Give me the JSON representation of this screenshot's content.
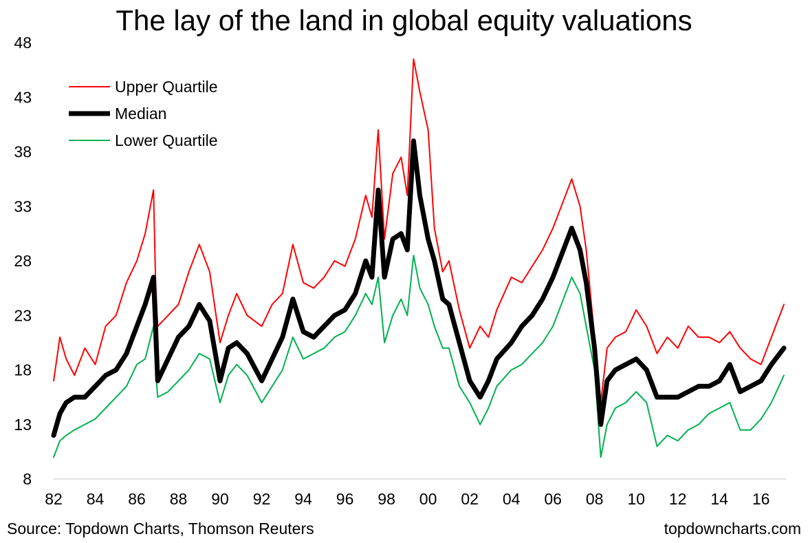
{
  "chart_data": {
    "type": "line",
    "title": "The lay of the land in global equity valuations",
    "xlabel": "",
    "ylabel": "",
    "ylim": [
      8,
      48
    ],
    "yticks": [
      8,
      13,
      18,
      23,
      28,
      33,
      38,
      43,
      48
    ],
    "xlim": [
      1982.0,
      2017.2
    ],
    "xticks": [
      {
        "value": 1982,
        "label": "82"
      },
      {
        "value": 1984,
        "label": "84"
      },
      {
        "value": 1986,
        "label": "86"
      },
      {
        "value": 1988,
        "label": "88"
      },
      {
        "value": 1990,
        "label": "90"
      },
      {
        "value": 1992,
        "label": "92"
      },
      {
        "value": 1994,
        "label": "94"
      },
      {
        "value": 1996,
        "label": "96"
      },
      {
        "value": 1998,
        "label": "98"
      },
      {
        "value": 2000,
        "label": "00"
      },
      {
        "value": 2002,
        "label": "02"
      },
      {
        "value": 2004,
        "label": "04"
      },
      {
        "value": 2006,
        "label": "06"
      },
      {
        "value": 2008,
        "label": "08"
      },
      {
        "value": 2010,
        "label": "10"
      },
      {
        "value": 2012,
        "label": "12"
      },
      {
        "value": 2014,
        "label": "14"
      },
      {
        "value": 2016,
        "label": "16"
      }
    ],
    "grid": false,
    "legend_position": "top-left",
    "x": [
      1982.0,
      1982.3,
      1982.6,
      1983.0,
      1983.5,
      1984.0,
      1984.5,
      1985.0,
      1985.5,
      1986.0,
      1986.4,
      1986.8,
      1986.9,
      1987.0,
      1987.5,
      1988.0,
      1988.5,
      1989.0,
      1989.5,
      1990.0,
      1990.4,
      1990.8,
      1991.3,
      1992.0,
      1992.5,
      1993.0,
      1993.5,
      1994.0,
      1994.5,
      1995.0,
      1995.5,
      1996.0,
      1996.5,
      1997.0,
      1997.3,
      1997.6,
      1997.9,
      1998.3,
      1998.7,
      1999.0,
      1999.3,
      1999.6,
      2000.0,
      2000.3,
      2000.7,
      2001.0,
      2001.5,
      2002.0,
      2002.5,
      2002.9,
      2003.3,
      2004.0,
      2004.5,
      2005.0,
      2005.5,
      2006.0,
      2006.5,
      2006.9,
      2007.3,
      2007.6,
      2008.0,
      2008.3,
      2008.6,
      2009.0,
      2009.5,
      2010.0,
      2010.5,
      2011.0,
      2011.5,
      2012.0,
      2012.5,
      2013.0,
      2013.5,
      2014.0,
      2014.5,
      2015.0,
      2015.5,
      2016.0,
      2016.5,
      2017.1
    ],
    "series": [
      {
        "name": "Upper Quartile",
        "color": "#ff0000",
        "width": 2,
        "values": [
          17.0,
          21.0,
          19.0,
          17.5,
          20.0,
          18.5,
          22.0,
          23.0,
          26.0,
          28.0,
          30.5,
          34.5,
          26.0,
          22.0,
          23.0,
          24.0,
          27.0,
          29.5,
          27.0,
          20.5,
          23.0,
          25.0,
          23.0,
          22.0,
          24.0,
          25.0,
          29.5,
          26.0,
          25.5,
          26.5,
          28.0,
          27.5,
          30.0,
          34.0,
          32.0,
          40.0,
          30.0,
          36.0,
          37.5,
          34.0,
          46.5,
          43.5,
          40.0,
          31.0,
          27.0,
          28.0,
          23.5,
          20.0,
          22.0,
          21.0,
          23.5,
          26.5,
          26.0,
          27.5,
          29.0,
          31.0,
          33.5,
          35.5,
          33.0,
          29.0,
          21.0,
          15.0,
          20.0,
          21.0,
          21.5,
          23.5,
          22.0,
          19.5,
          21.0,
          20.0,
          22.0,
          21.0,
          21.0,
          20.5,
          21.5,
          20.0,
          19.0,
          18.5,
          21.0,
          24.0
        ]
      },
      {
        "name": "Median",
        "color": "#000000",
        "width": 7,
        "values": [
          12.0,
          14.0,
          15.0,
          15.5,
          15.5,
          16.5,
          17.5,
          18.0,
          19.5,
          22.0,
          24.0,
          26.5,
          22.0,
          17.0,
          19.0,
          21.0,
          22.0,
          24.0,
          22.5,
          17.0,
          20.0,
          20.5,
          19.5,
          17.0,
          19.0,
          21.0,
          24.5,
          21.5,
          21.0,
          22.0,
          23.0,
          23.5,
          25.0,
          28.0,
          26.5,
          34.5,
          26.5,
          30.0,
          30.5,
          29.0,
          39.0,
          34.0,
          30.0,
          28.0,
          24.5,
          24.0,
          20.5,
          17.0,
          15.5,
          17.0,
          19.0,
          20.5,
          22.0,
          23.0,
          24.5,
          26.5,
          29.0,
          31.0,
          29.0,
          26.0,
          20.0,
          13.0,
          17.0,
          18.0,
          18.5,
          19.0,
          18.0,
          15.5,
          15.5,
          15.5,
          16.0,
          16.5,
          16.5,
          17.0,
          18.5,
          16.0,
          16.5,
          17.0,
          18.5,
          20.0
        ]
      },
      {
        "name": "Lower Quartile",
        "color": "#00b050",
        "width": 2,
        "values": [
          10.0,
          11.5,
          12.0,
          12.5,
          13.0,
          13.5,
          14.5,
          15.5,
          16.5,
          18.5,
          19.0,
          22.0,
          18.0,
          15.5,
          16.0,
          17.0,
          18.0,
          19.5,
          19.0,
          15.0,
          17.5,
          18.5,
          17.5,
          15.0,
          16.5,
          18.0,
          21.0,
          19.0,
          19.5,
          20.0,
          21.0,
          21.5,
          23.0,
          25.0,
          24.0,
          26.5,
          20.5,
          23.0,
          24.5,
          23.0,
          28.5,
          25.5,
          24.0,
          22.0,
          20.0,
          20.0,
          16.5,
          15.0,
          13.0,
          14.5,
          16.5,
          18.0,
          18.5,
          19.5,
          20.5,
          22.0,
          24.5,
          26.5,
          25.0,
          22.0,
          18.0,
          10.0,
          13.0,
          14.5,
          15.0,
          16.0,
          15.0,
          11.0,
          12.0,
          11.5,
          12.5,
          13.0,
          14.0,
          14.5,
          15.0,
          12.5,
          12.5,
          13.5,
          15.0,
          17.5
        ]
      }
    ]
  },
  "footer": {
    "source": "Source: Topdown Charts, Thomson Reuters",
    "website": "topdowncharts.com"
  }
}
